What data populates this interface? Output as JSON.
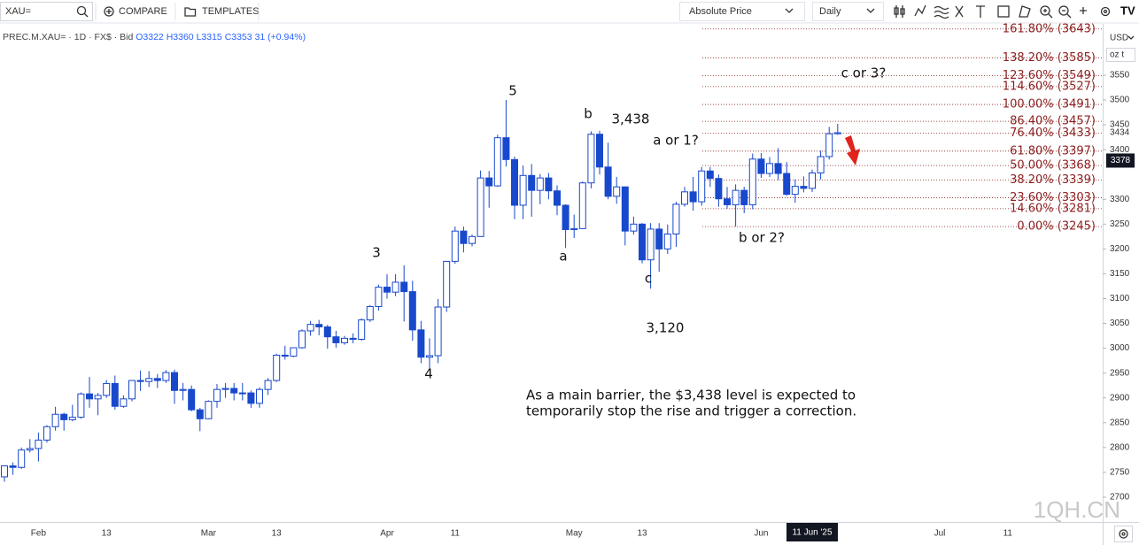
{
  "toolbar": {
    "symbol": "XAU=",
    "compare": "COMPARE",
    "templates": "TEMPLATES",
    "price_mode": "Absolute Price",
    "interval": "Daily"
  },
  "chart_data": {
    "type": "candlestick",
    "legend": {
      "symbol": "PREC.M.XAU= · 1D · FX$ · Bid",
      "open": "O3322",
      "high": "H3360",
      "low": "L3315",
      "close": "C3353",
      "change": "31 (+0.94%)"
    },
    "categories": [
      null,
      null,
      null,
      null,
      "Feb",
      null,
      null,
      null,
      null,
      null,
      null,
      null,
      "13",
      null,
      null,
      null,
      null,
      null,
      null,
      null,
      null,
      null,
      null,
      null,
      "Mar",
      null,
      null,
      null,
      null,
      null,
      null,
      null,
      "13",
      null,
      null,
      null,
      null,
      null,
      null,
      null,
      null,
      null,
      null,
      null,
      null,
      "Apr",
      null,
      null,
      null,
      null,
      null,
      null,
      null,
      "11",
      null,
      null,
      null,
      null,
      null,
      null,
      null,
      null,
      null,
      null,
      null,
      null,
      null,
      "May",
      null,
      null,
      null,
      null,
      null,
      null,
      null,
      "13",
      null,
      null,
      null,
      null,
      null,
      null,
      null,
      null,
      null,
      null,
      null,
      null,
      null,
      "Jun",
      null,
      null,
      null,
      null,
      null,
      null,
      null,
      null,
      null,
      null,
      null,
      null,
      null,
      null,
      null,
      null,
      null,
      null,
      null,
      null,
      "Jul",
      null,
      null,
      null,
      null,
      null,
      null,
      null,
      "11",
      null,
      null,
      null,
      null,
      null,
      null,
      null,
      null,
      null,
      null,
      null,
      null
    ],
    "ohlc": {
      "open": [
        2741,
        2763,
        2760,
        2795,
        2798,
        2815,
        2842,
        2867,
        2856,
        2861,
        2908,
        2898,
        2905,
        2929,
        2883,
        2898,
        2935,
        2933,
        2939,
        2935,
        2951,
        2915,
        2917,
        2876,
        2858,
        2893,
        2917,
        2919,
        2910,
        2910,
        2889,
        2917,
        2935,
        2986,
        2984,
        3001,
        3035,
        3048,
        3043,
        3023,
        3011,
        3020,
        3018,
        3057,
        3084,
        3123,
        3113,
        3133,
        3114,
        3037,
        2982,
        2985,
        3083,
        3175,
        3236,
        3211,
        3225,
        3343,
        3327,
        3424,
        3380,
        3288,
        3348,
        3318,
        3343,
        3317,
        3288,
        3239,
        3241,
        3333,
        3431,
        3365,
        3306,
        3325,
        3236,
        3250,
        3178,
        3240,
        3200,
        3230,
        3290,
        3315,
        3295,
        3357,
        3342,
        3301,
        3289,
        3318,
        3289,
        3381,
        3352,
        3372,
        3352,
        3310,
        3326,
        3322,
        3353,
        3386,
        3432,
        null,
        null,
        null,
        null,
        null,
        null,
        null,
        null,
        null,
        null,
        null,
        null,
        null,
        null,
        null,
        null,
        null,
        null,
        null,
        null,
        null,
        null,
        null,
        null,
        null,
        null,
        null,
        null,
        null,
        null,
        null
      ],
      "high": [
        2764,
        2770,
        2800,
        2817,
        2830,
        2845,
        2882,
        2870,
        2886,
        2911,
        2942,
        2910,
        2936,
        2945,
        2905,
        2936,
        2955,
        2954,
        2948,
        2956,
        2957,
        2930,
        2925,
        2880,
        2895,
        2928,
        2930,
        2930,
        2930,
        2915,
        2921,
        2940,
        2989,
        3005,
        3001,
        3038,
        3055,
        3057,
        3047,
        3035,
        3025,
        3030,
        3060,
        3087,
        3128,
        3149,
        3149,
        3167,
        3136,
        3055,
        3020,
        3099,
        3175,
        3245,
        3245,
        3229,
        3358,
        3357,
        3430,
        3500,
        3386,
        3368,
        3371,
        3351,
        3353,
        3328,
        3290,
        3269,
        3336,
        3437,
        3438,
        3414,
        3345,
        3325,
        3265,
        3252,
        3252,
        3252,
        3249,
        3295,
        3325,
        3345,
        3365,
        3365,
        3350,
        3325,
        3330,
        3325,
        3392,
        3393,
        3385,
        3403,
        3375,
        3340,
        3346,
        3360,
        3398,
        3446,
        3452,
        null,
        null,
        null,
        null,
        null,
        null,
        null,
        null,
        null,
        null,
        null,
        null,
        null,
        null,
        null,
        null,
        null,
        null,
        null,
        null,
        null,
        null,
        null,
        null,
        null,
        null,
        null,
        null,
        null,
        null,
        null
      ],
      "low": [
        2731,
        2745,
        2757,
        2790,
        2772,
        2810,
        2834,
        2834,
        2853,
        2858,
        2880,
        2865,
        2900,
        2876,
        2880,
        2893,
        2914,
        2922,
        2920,
        2930,
        2888,
        2895,
        2873,
        2833,
        2857,
        2880,
        2900,
        2895,
        2895,
        2880,
        2880,
        2906,
        2932,
        2977,
        2982,
        2999,
        3025,
        3026,
        2999,
        3001,
        3007,
        3010,
        3015,
        3053,
        3076,
        3100,
        3105,
        3054,
        3015,
        2970,
        2957,
        2970,
        3073,
        3170,
        3193,
        3205,
        3225,
        3283,
        3325,
        3366,
        3260,
        3260,
        3265,
        3290,
        3300,
        3268,
        3202,
        3222,
        3240,
        3322,
        3350,
        3300,
        3291,
        3207,
        3229,
        3171,
        3120,
        3154,
        3190,
        3204,
        3285,
        3277,
        3287,
        3325,
        3285,
        3281,
        3245,
        3272,
        3280,
        3343,
        3345,
        3339,
        3307,
        3293,
        3314,
        3315,
        3340,
        3380,
        3430,
        null,
        null,
        null,
        null,
        null,
        null,
        null,
        null,
        null,
        null,
        null,
        null,
        null,
        null,
        null,
        null,
        null,
        null,
        null,
        null,
        null,
        null,
        null,
        null,
        null,
        null,
        null,
        null,
        null,
        null,
        null
      ],
      "close": [
        2763,
        2760,
        2795,
        2798,
        2815,
        2842,
        2867,
        2856,
        2861,
        2908,
        2898,
        2905,
        2929,
        2883,
        2898,
        2935,
        2933,
        2939,
        2935,
        2951,
        2915,
        2917,
        2876,
        2858,
        2893,
        2917,
        2919,
        2910,
        2910,
        2889,
        2917,
        2935,
        2986,
        2984,
        3001,
        3035,
        3048,
        3043,
        3023,
        3011,
        3020,
        3018,
        3057,
        3084,
        3123,
        3113,
        3133,
        3114,
        3037,
        2982,
        2985,
        3083,
        3175,
        3236,
        3211,
        3225,
        3343,
        3327,
        3424,
        3380,
        3288,
        3348,
        3318,
        3343,
        3317,
        3288,
        3239,
        3241,
        3333,
        3431,
        3365,
        3306,
        3325,
        3236,
        3250,
        3178,
        3240,
        3200,
        3230,
        3290,
        3315,
        3295,
        3357,
        3342,
        3301,
        3289,
        3318,
        3289,
        3381,
        3352,
        3372,
        3352,
        3310,
        3326,
        3322,
        3353,
        3386,
        3432,
        3434,
        null,
        null,
        null,
        null,
        null,
        null,
        null,
        null,
        null,
        null,
        null,
        null,
        null,
        null,
        null,
        null,
        null,
        null,
        null,
        null,
        null,
        null,
        null,
        null,
        null,
        null,
        null,
        null,
        null,
        null,
        null
      ]
    },
    "up_color": "#ffffff",
    "down_color": "#1848cc",
    "border_color": "#1848cc",
    "ylim": [
      2650,
      3651.5
    ],
    "yticks": [
      2700,
      2750,
      2800,
      2850,
      2900,
      2950,
      3000,
      3050,
      3100,
      3150,
      3200,
      3250,
      3300,
      3400,
      3450,
      3500,
      3550
    ],
    "currency": "USD",
    "unit": "oz t",
    "last_price": 3434,
    "crosshair_price": 3378,
    "crosshair_date": "11 Jun '25",
    "fib_color": "#8b1e1e",
    "fib_levels": [
      {
        "value": 3643,
        "label": "161.80% (3643)"
      },
      {
        "value": 3585,
        "label": "138.20% (3585)"
      },
      {
        "value": 3549,
        "label": "123.60% (3549)"
      },
      {
        "value": 3527,
        "label": "114.60% (3527)"
      },
      {
        "value": 3491,
        "label": "100.00% (3491)"
      },
      {
        "value": 3457,
        "label": "86.40% (3457)"
      },
      {
        "value": 3433,
        "label": "76.40% (3433)"
      },
      {
        "value": 3397,
        "label": "61.80% (3397)"
      },
      {
        "value": 3368,
        "label": "50.00% (3368)"
      },
      {
        "value": 3339,
        "label": "38.20% (3339)"
      },
      {
        "value": 3303,
        "label": "23.60% (3303)"
      },
      {
        "value": 3281,
        "label": "14.60% (3281)"
      },
      {
        "value": 3245,
        "label": "0.00% (3245)"
      }
    ],
    "annotations": [
      "5",
      "b",
      "3,438",
      "a or 1?",
      "c or 3?",
      "3",
      "a",
      "c",
      "b or 2?",
      "4",
      "3,120"
    ],
    "note": [
      "As a main barrier, the $3,438 level is expected to",
      "temporarily stop the rise and trigger a correction."
    ],
    "watermark": "1QH.CN"
  }
}
